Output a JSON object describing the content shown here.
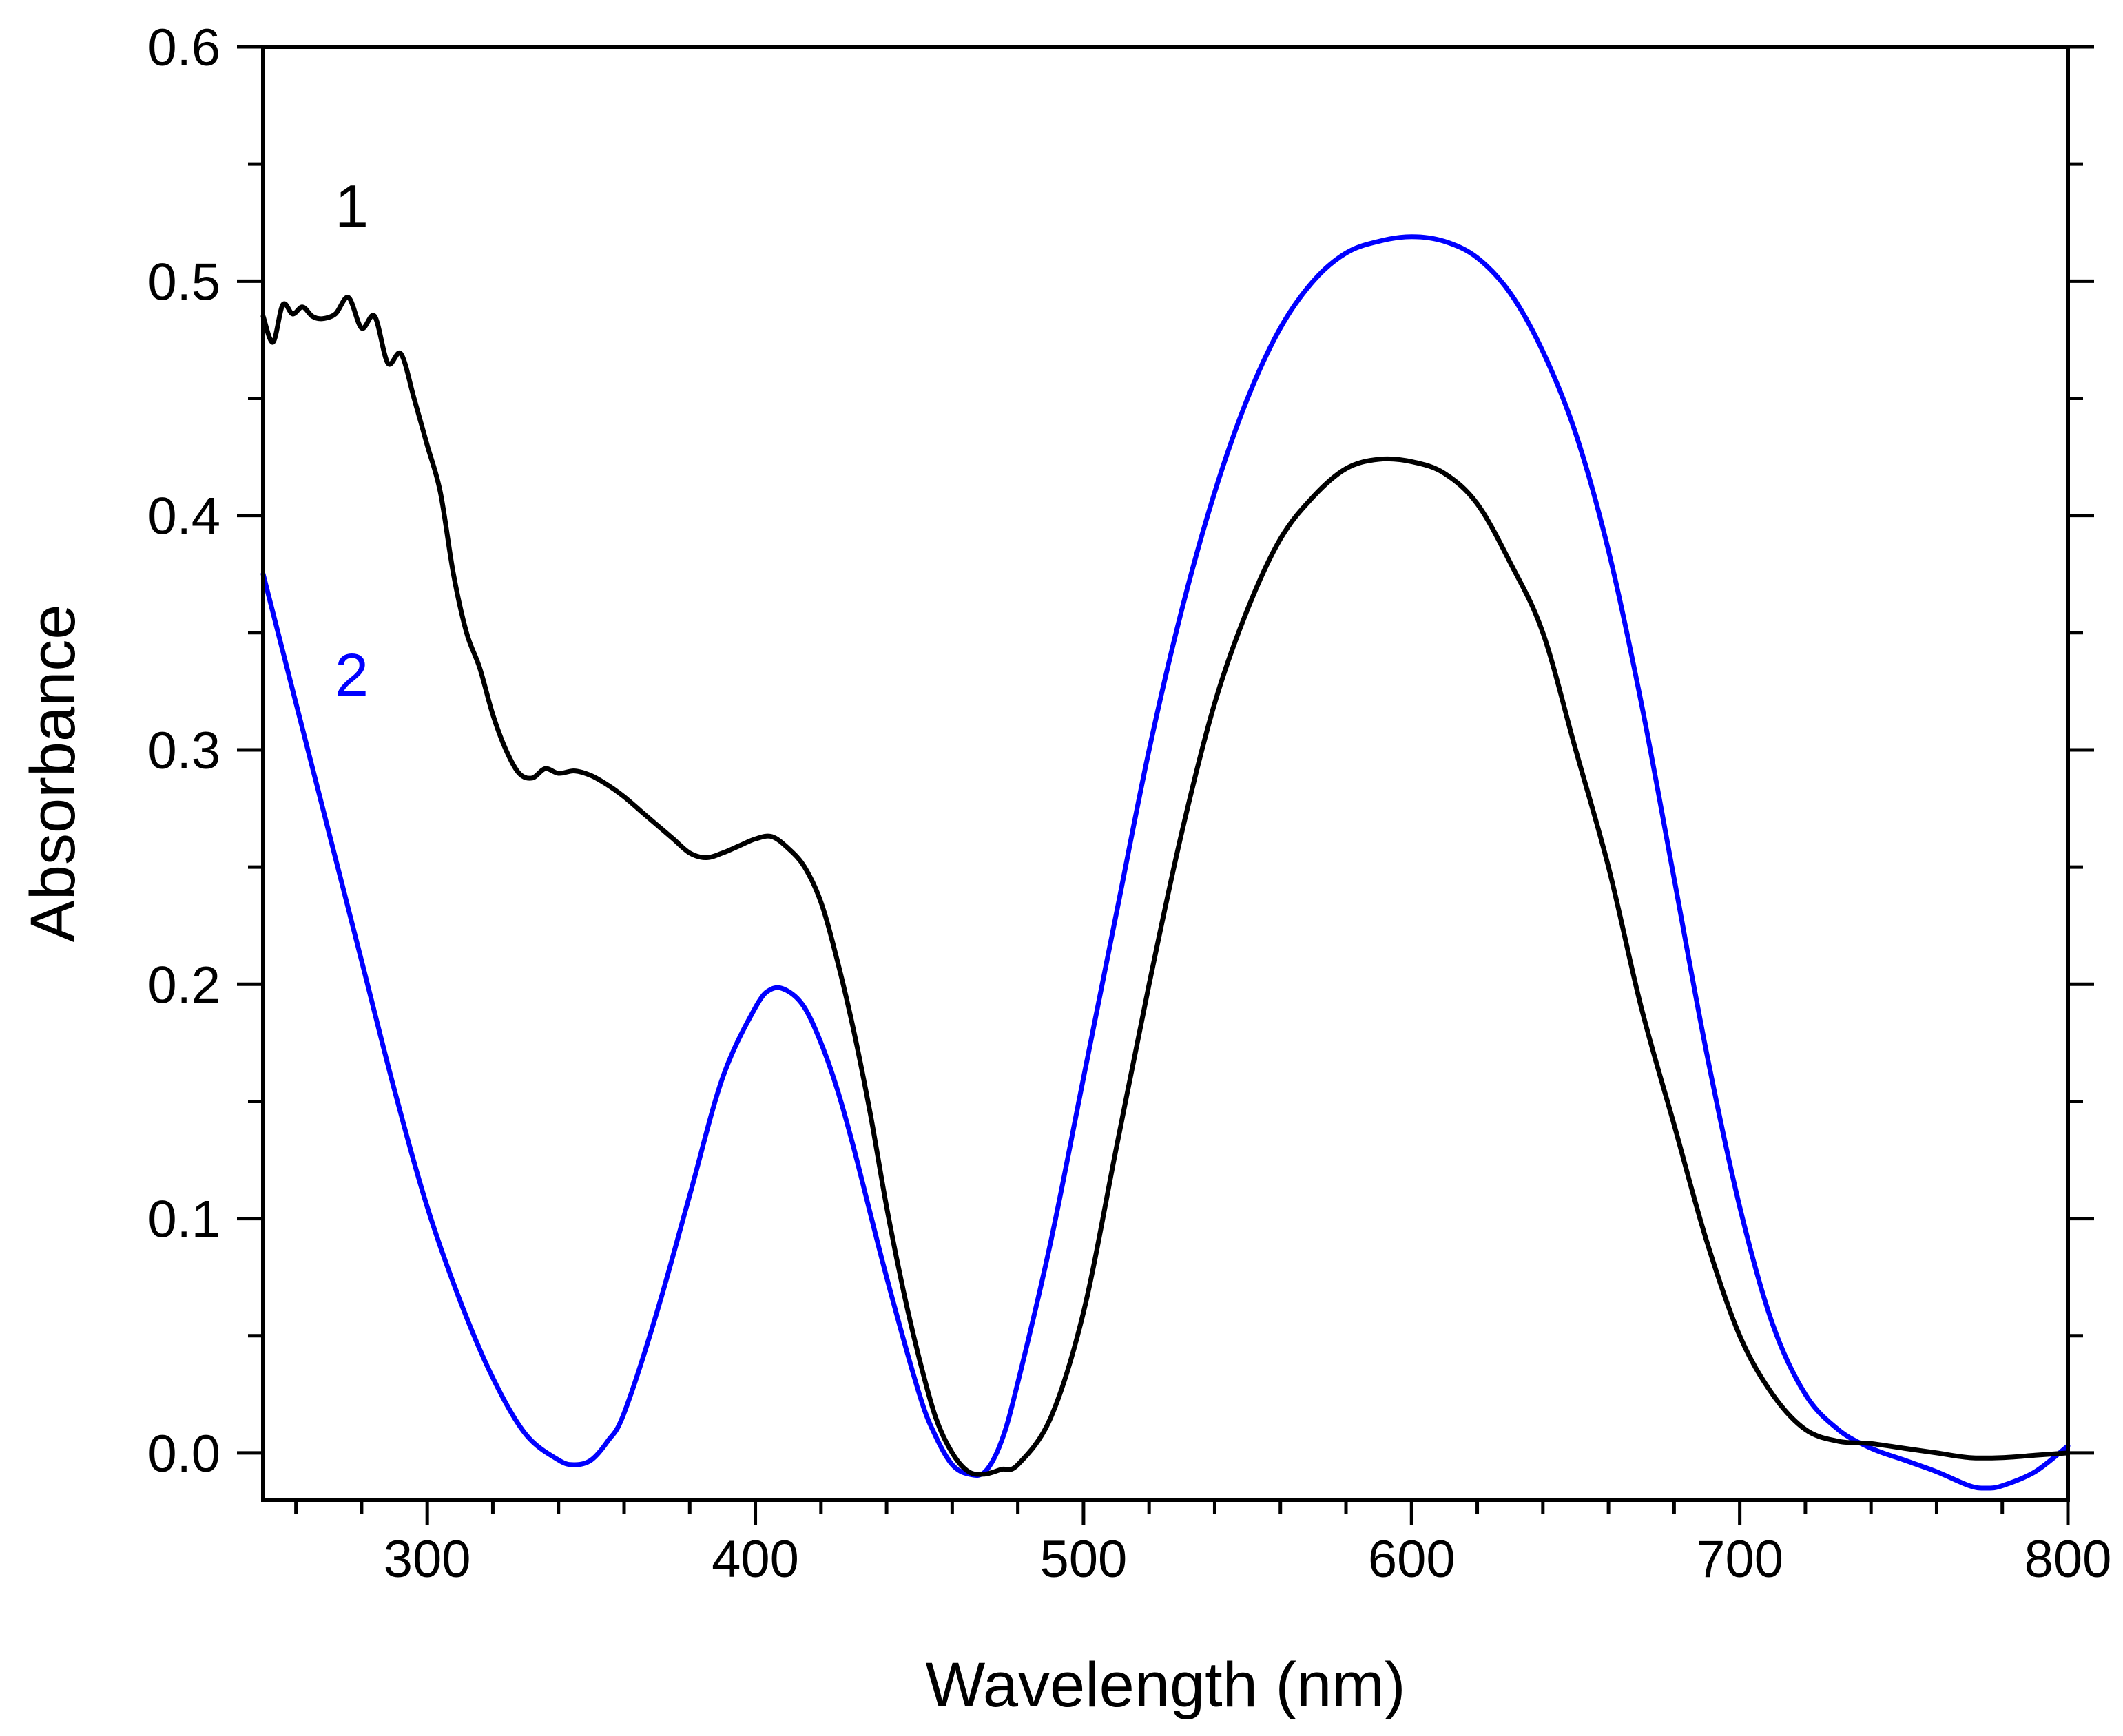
{
  "chart_data": {
    "type": "line",
    "title": "",
    "xlabel": "Wavelength (nm)",
    "ylabel": "Absorbance",
    "xlim": [
      250,
      800
    ],
    "ylim": [
      -0.02,
      0.6
    ],
    "x_ticks": [
      300,
      400,
      500,
      600,
      700,
      800
    ],
    "x_tick_labels": [
      "300",
      "400",
      "500",
      "600",
      "700",
      "800"
    ],
    "y_ticks": [
      0.0,
      0.1,
      0.2,
      0.3,
      0.4,
      0.5,
      0.6
    ],
    "y_tick_labels": [
      "0.0",
      "0.1",
      "0.2",
      "0.3",
      "0.4",
      "0.5",
      "0.6"
    ],
    "grid": false,
    "series": [
      {
        "name": "1",
        "color": "#000000",
        "x": [
          250,
          253,
          256,
          259,
          262,
          265,
          268,
          272,
          276,
          280,
          284,
          288,
          292,
          296,
          300,
          304,
          308,
          312,
          316,
          320,
          324,
          328,
          332,
          336,
          340,
          345,
          350,
          355,
          360,
          365,
          370,
          375,
          380,
          385,
          390,
          395,
          400,
          405,
          410,
          415,
          420,
          425,
          430,
          435,
          440,
          445,
          450,
          455,
          460,
          465,
          470,
          475,
          480,
          490,
          500,
          510,
          520,
          530,
          540,
          550,
          560,
          570,
          580,
          590,
          600,
          610,
          620,
          630,
          640,
          650,
          660,
          670,
          680,
          690,
          700,
          710,
          720,
          730,
          740,
          750,
          760,
          770,
          780,
          790,
          800
        ],
        "values": [
          0.485,
          0.474,
          0.49,
          0.486,
          0.489,
          0.485,
          0.484,
          0.486,
          0.493,
          0.48,
          0.485,
          0.465,
          0.469,
          0.45,
          0.43,
          0.41,
          0.375,
          0.35,
          0.335,
          0.315,
          0.3,
          0.29,
          0.288,
          0.292,
          0.29,
          0.291,
          0.289,
          0.285,
          0.28,
          0.274,
          0.268,
          0.262,
          0.256,
          0.254,
          0.256,
          0.259,
          0.262,
          0.263,
          0.258,
          0.25,
          0.235,
          0.21,
          0.18,
          0.145,
          0.105,
          0.07,
          0.04,
          0.015,
          0.0,
          -0.008,
          -0.009,
          -0.007,
          -0.005,
          0.015,
          0.06,
          0.13,
          0.2,
          0.265,
          0.32,
          0.36,
          0.39,
          0.408,
          0.42,
          0.424,
          0.423,
          0.418,
          0.405,
          0.38,
          0.35,
          0.3,
          0.25,
          0.19,
          0.14,
          0.09,
          0.05,
          0.025,
          0.01,
          0.005,
          0.004,
          0.002,
          0.0,
          -0.002,
          -0.002,
          -0.001,
          0.0
        ]
      },
      {
        "name": "2",
        "color": "#0000FF",
        "x": [
          250,
          260,
          270,
          280,
          290,
          300,
          310,
          320,
          330,
          340,
          345,
          350,
          355,
          360,
          370,
          380,
          390,
          400,
          405,
          410,
          415,
          420,
          425,
          430,
          440,
          450,
          455,
          460,
          465,
          470,
          475,
          480,
          490,
          500,
          510,
          520,
          530,
          540,
          550,
          560,
          570,
          580,
          590,
          600,
          610,
          620,
          630,
          640,
          650,
          660,
          670,
          680,
          690,
          700,
          710,
          720,
          730,
          740,
          750,
          760,
          770,
          775,
          780,
          790,
          800
        ],
        "values": [
          0.375,
          0.32,
          0.265,
          0.21,
          0.155,
          0.105,
          0.065,
          0.032,
          0.008,
          -0.003,
          -0.005,
          -0.003,
          0.005,
          0.017,
          0.06,
          0.11,
          0.16,
          0.19,
          0.198,
          0.197,
          0.19,
          0.175,
          0.155,
          0.13,
          0.075,
          0.025,
          0.007,
          -0.005,
          -0.009,
          -0.008,
          0.005,
          0.03,
          0.09,
          0.16,
          0.23,
          0.3,
          0.36,
          0.41,
          0.45,
          0.48,
          0.5,
          0.512,
          0.517,
          0.519,
          0.517,
          0.51,
          0.495,
          0.47,
          0.435,
          0.385,
          0.32,
          0.245,
          0.17,
          0.105,
          0.055,
          0.025,
          0.01,
          0.002,
          -0.003,
          -0.008,
          -0.014,
          -0.015,
          -0.014,
          -0.008,
          0.003
        ]
      }
    ],
    "annotations": [
      {
        "text": "1",
        "color": "#000000",
        "x": 277,
        "y": 0.523
      },
      {
        "text": "2",
        "color": "#0000FF",
        "x": 277,
        "y": 0.323
      }
    ]
  }
}
